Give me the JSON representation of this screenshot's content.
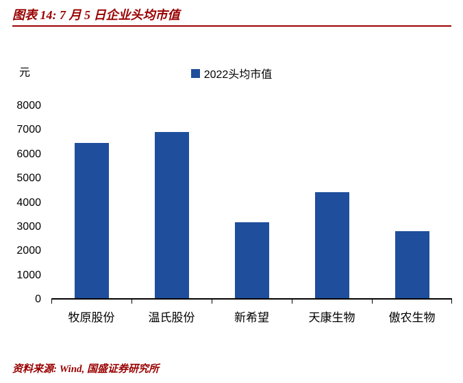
{
  "header": {
    "title": "图表 14: 7 月 5 日企业头均市值"
  },
  "footer": {
    "source": "资料来源: Wind, 国盛证券研究所"
  },
  "colors": {
    "accent_red": "#990000",
    "bar_blue": "#1F4E9C",
    "axis_black": "#000000"
  },
  "chart_data": {
    "type": "bar",
    "title": "图表 14: 7 月 5 日企业头均市值",
    "unit_label": "元",
    "legend": [
      "2022头均市值"
    ],
    "legend_position": "top-center",
    "categories": [
      "牧原股份",
      "温氏股份",
      "新希望",
      "天康生物",
      "傲农生物"
    ],
    "values": [
      6420,
      6880,
      3140,
      4370,
      2760
    ],
    "ylim": [
      0,
      8000
    ],
    "ytick_interval": 1000,
    "grid": false,
    "bar_color": "#1F4E9C"
  }
}
